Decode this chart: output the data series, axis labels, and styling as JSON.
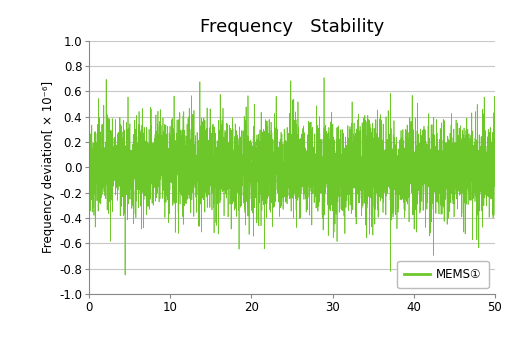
{
  "title": "Frequency   Stability",
  "ylabel": "Frequency deviation[ × 10⁻⁶]",
  "xlim": [
    0,
    50
  ],
  "ylim": [
    -1.0,
    1.0
  ],
  "yticks": [
    -1.0,
    -0.8,
    -0.6,
    -0.4,
    -0.2,
    0.0,
    0.2,
    0.4,
    0.6,
    0.8,
    1.0
  ],
  "ytick_labels": [
    "-1.0",
    "-0.8",
    "-0.6",
    "-0.4",
    "-0.2",
    "0.0",
    "0.2",
    "0.4",
    "0.6",
    "0.8",
    "1.0"
  ],
  "xticks": [
    0,
    10,
    20,
    30,
    40,
    50
  ],
  "line_color": "#6dc72b",
  "legend_label": "MEMS①",
  "background_color": "#ffffff",
  "grid_color": "#c8c8c8",
  "title_fontsize": 13,
  "label_fontsize": 8.5,
  "tick_fontsize": 8.5,
  "n_points": 5000,
  "seed": 42,
  "noise_scale": 0.18,
  "spike_prob": 0.015,
  "spike_scale": 0.45
}
